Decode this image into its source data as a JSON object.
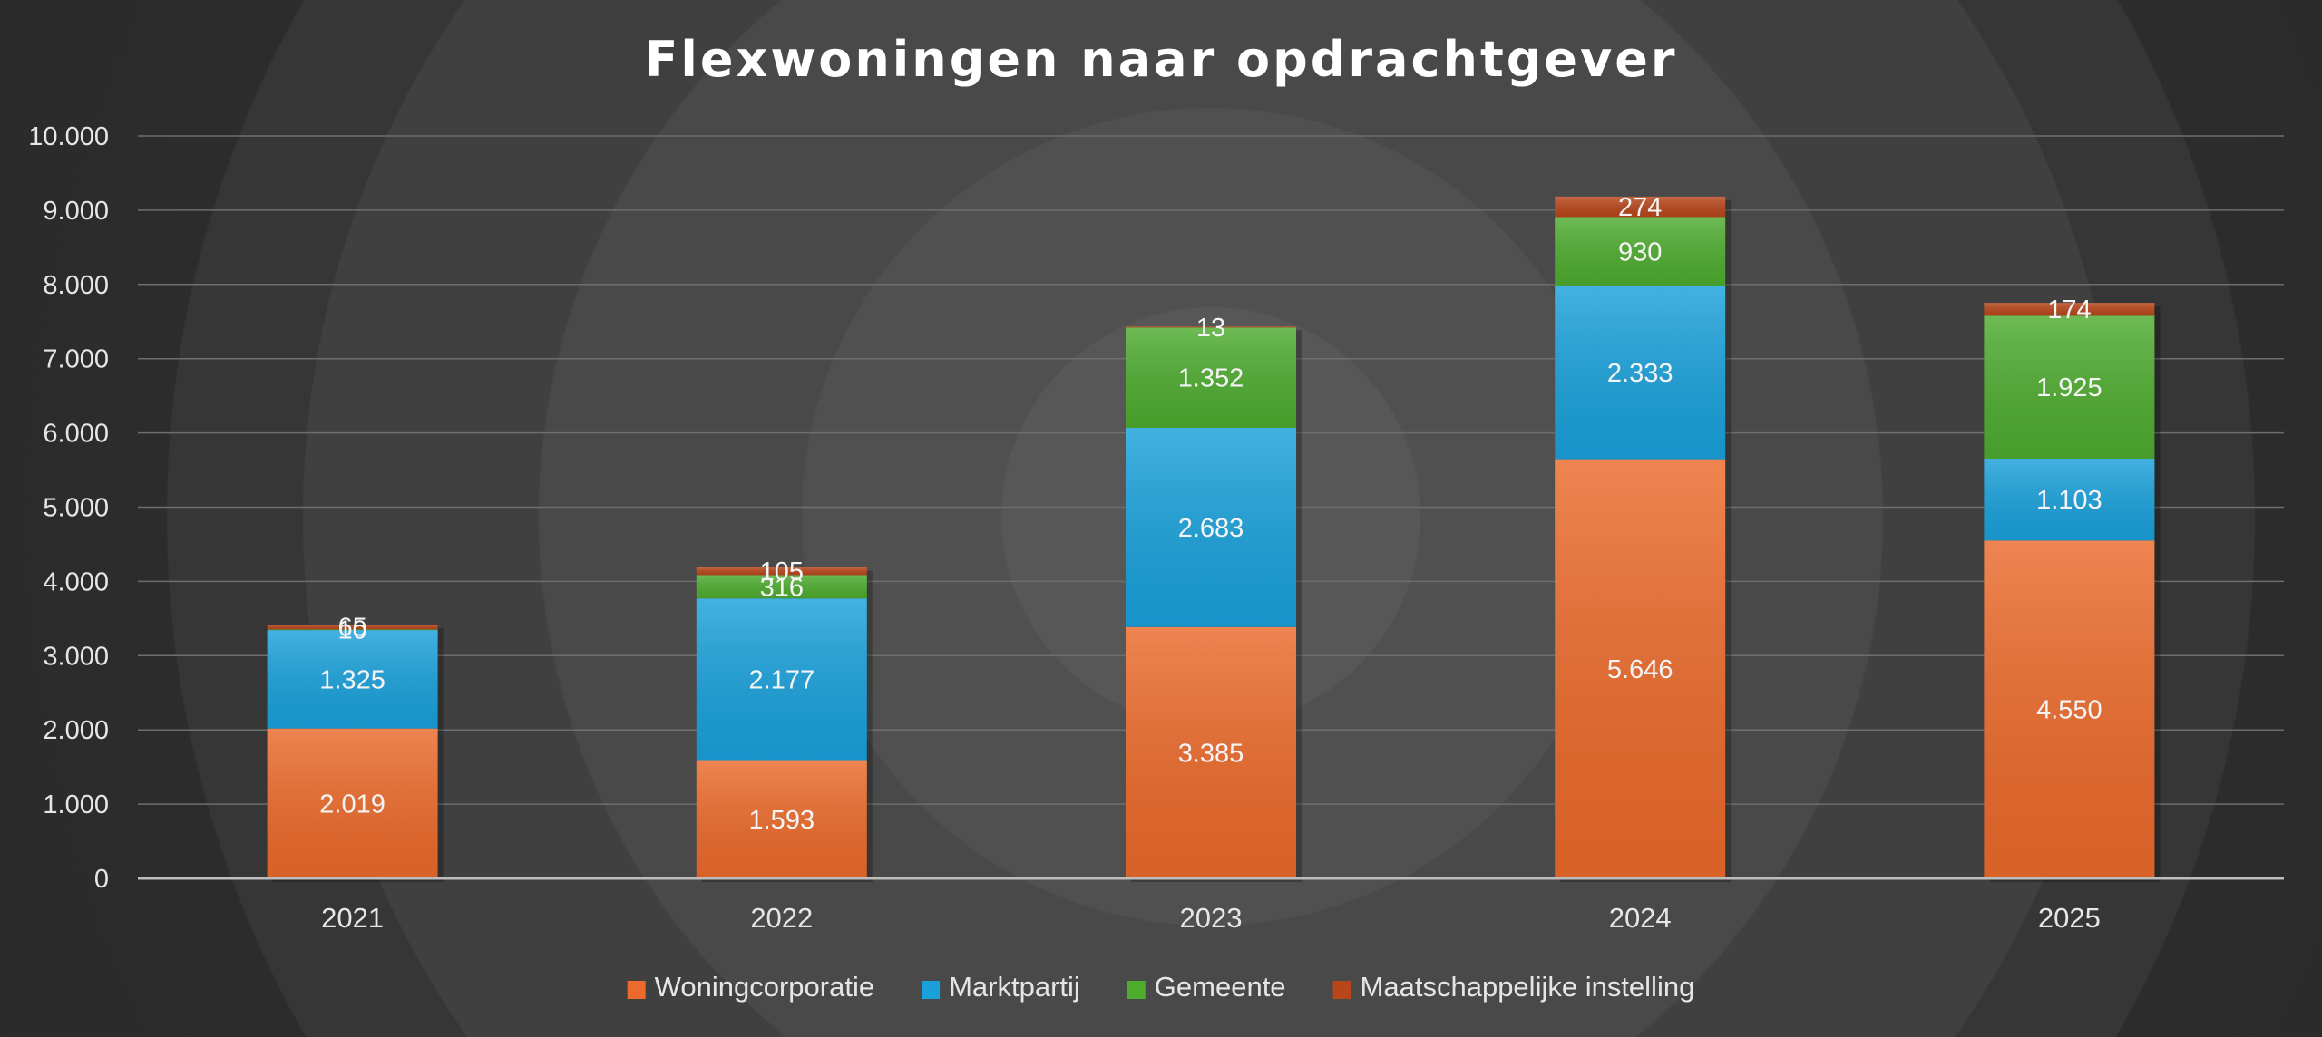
{
  "chart_data": {
    "type": "bar",
    "stacked": true,
    "title": "Flexwoningen naar opdrachtgever",
    "xlabel": "",
    "ylabel": "",
    "ylim": [
      0,
      10000
    ],
    "ytick_step": 1000,
    "ytick_labels": [
      "0",
      "1.000",
      "2.000",
      "3.000",
      "4.000",
      "5.000",
      "6.000",
      "7.000",
      "8.000",
      "9.000",
      "10.000"
    ],
    "grid": true,
    "legend_position": "bottom",
    "categories": [
      "2021",
      "2022",
      "2023",
      "2024",
      "2025"
    ],
    "series": [
      {
        "name": "Woningcorporatie",
        "color": "#ec6a2b",
        "values": [
          2019,
          1593,
          3385,
          5646,
          4550
        ],
        "labels": [
          "2.019",
          "1.593",
          "3.385",
          "5.646",
          "4.550"
        ]
      },
      {
        "name": "Marktpartij",
        "color": "#1aa1db",
        "values": [
          1325,
          2177,
          2683,
          2333,
          1103
        ],
        "labels": [
          "1.325",
          "2.177",
          "2.683",
          "2.333",
          "1.103"
        ]
      },
      {
        "name": "Gemeente",
        "color": "#4eac2f",
        "values": [
          10,
          316,
          1352,
          930,
          1925
        ],
        "labels": [
          "10",
          "316",
          "1.352",
          "930",
          "1.925"
        ]
      },
      {
        "name": "Maatschappelijke instelling",
        "color": "#b8461b",
        "values": [
          65,
          105,
          13,
          274,
          174
        ],
        "labels": [
          "65",
          "105",
          "13",
          "274",
          "174"
        ]
      }
    ]
  }
}
